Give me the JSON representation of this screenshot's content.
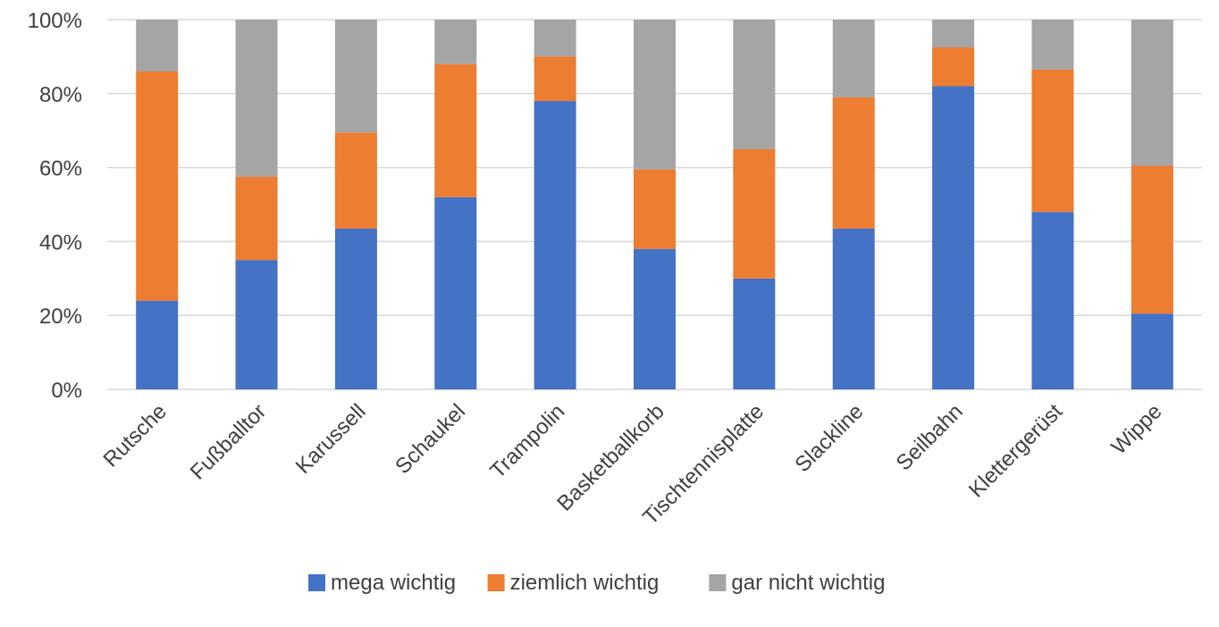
{
  "chart_data": {
    "type": "bar",
    "stacked": true,
    "percent_stacked": true,
    "categories": [
      "Rutsche",
      "Fußballtor",
      "Karussell",
      "Schaukel",
      "Trampolin",
      "Basketballkorb",
      "Tischtennisplatte",
      "Slackline",
      "Seilbahn",
      "Klettergerüst",
      "Wippe"
    ],
    "series": [
      {
        "name": "mega wichtig",
        "color": "#4472C4",
        "values": [
          24,
          35,
          43.5,
          52,
          78,
          38,
          30,
          43.5,
          82,
          48,
          20.5
        ]
      },
      {
        "name": "ziemlich wichtig",
        "color": "#ED7D31",
        "values": [
          62,
          22.5,
          26,
          36,
          12,
          21.5,
          35,
          35.5,
          10.5,
          38.5,
          40
        ]
      },
      {
        "name": "gar nicht wichtig",
        "color": "#A5A5A5",
        "values": [
          14,
          42.5,
          30.5,
          12,
          10,
          40.5,
          35,
          21,
          7.5,
          13.5,
          39.5
        ]
      }
    ],
    "ylim": [
      0,
      100
    ],
    "yticks": [
      "0%",
      "20%",
      "40%",
      "60%",
      "80%",
      "100%"
    ],
    "title": "",
    "xlabel": "",
    "ylabel": "",
    "grid": true,
    "legend_position": "bottom"
  }
}
